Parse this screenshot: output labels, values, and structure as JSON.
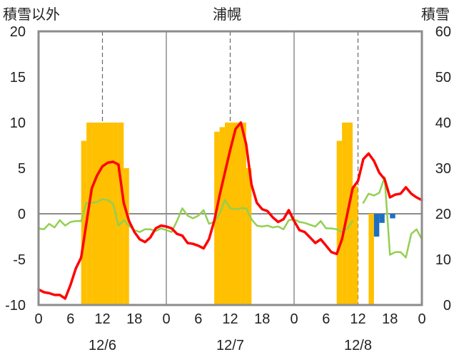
{
  "chart_data": {
    "type": "line",
    "title": "浦幌",
    "ylabel_left": "積雪以外",
    "ylabel_right": "積雪",
    "ylim_left": [
      -10,
      20
    ],
    "ylim_right": [
      0,
      60
    ],
    "yticks_left": [
      20,
      15,
      10,
      5,
      0,
      -5,
      -10
    ],
    "yticks_right": [
      60,
      50,
      40,
      30,
      20,
      10,
      0
    ],
    "x_range_hours": [
      0,
      72
    ],
    "x_tick_hours": [
      0,
      6,
      12,
      18,
      24,
      30,
      36,
      42,
      48,
      54,
      60,
      66,
      72
    ],
    "x_tick_labels": [
      "0",
      "6",
      "12",
      "18",
      "0",
      "6",
      "12",
      "18",
      "0",
      "6",
      "12",
      "18",
      "0"
    ],
    "day_labels": [
      "12/6",
      "12/7",
      "12/8"
    ],
    "day_label_hours": [
      12,
      36,
      60
    ],
    "series": [
      {
        "key": "snow_depth_bars",
        "axis": "right",
        "color": "#ffc000",
        "values": [
          [
            8,
            36
          ],
          [
            9,
            40
          ],
          [
            10,
            40
          ],
          [
            11,
            40
          ],
          [
            12,
            40
          ],
          [
            13,
            40
          ],
          [
            14,
            40
          ],
          [
            15,
            40
          ],
          [
            16,
            30
          ],
          [
            33,
            38
          ],
          [
            34,
            39
          ],
          [
            35,
            40
          ],
          [
            36,
            40
          ],
          [
            37,
            40
          ],
          [
            38,
            40
          ],
          [
            39,
            30
          ],
          [
            56,
            36
          ],
          [
            57,
            40
          ],
          [
            58,
            40
          ],
          [
            59,
            26
          ],
          [
            62,
            20
          ]
        ]
      },
      {
        "key": "blue_bars",
        "axis": "left",
        "color": "#1f6fbf",
        "values": [
          [
            63,
            -2.5
          ],
          [
            64,
            -1.0
          ],
          [
            66,
            -0.5
          ]
        ]
      },
      {
        "key": "red_line",
        "axis": "left",
        "color": "#ff0000",
        "values": [
          [
            0,
            -8.3
          ],
          [
            1,
            -8.6
          ],
          [
            2,
            -8.7
          ],
          [
            3,
            -8.9
          ],
          [
            4,
            -8.9
          ],
          [
            5,
            -9.3
          ],
          [
            6,
            -7.8
          ],
          [
            7,
            -6.0
          ],
          [
            8,
            -4.8
          ],
          [
            9,
            -1.0
          ],
          [
            10,
            2.8
          ],
          [
            11,
            4.2
          ],
          [
            12,
            5.2
          ],
          [
            13,
            5.6
          ],
          [
            14,
            5.7
          ],
          [
            15,
            5.4
          ],
          [
            16,
            1.2
          ],
          [
            17,
            -0.8
          ],
          [
            18,
            -2.0
          ],
          [
            19,
            -2.8
          ],
          [
            20,
            -3.1
          ],
          [
            21,
            -2.6
          ],
          [
            22,
            -1.6
          ],
          [
            23,
            -1.3
          ],
          [
            24,
            -1.4
          ],
          [
            25,
            -1.6
          ],
          [
            26,
            -2.2
          ],
          [
            27,
            -2.4
          ],
          [
            28,
            -3.2
          ],
          [
            29,
            -3.3
          ],
          [
            30,
            -3.5
          ],
          [
            31,
            -3.8
          ],
          [
            32,
            -2.8
          ],
          [
            33,
            -0.8
          ],
          [
            34,
            2.0
          ],
          [
            35,
            4.5
          ],
          [
            36,
            7.0
          ],
          [
            37,
            9.3
          ],
          [
            38,
            10.0
          ],
          [
            39,
            7.6
          ],
          [
            40,
            3.2
          ],
          [
            41,
            1.2
          ],
          [
            42,
            0.5
          ],
          [
            43,
            0.3
          ],
          [
            44,
            -0.4
          ],
          [
            45,
            -0.9
          ],
          [
            46,
            -0.6
          ],
          [
            47,
            0.4
          ],
          [
            48,
            -0.8
          ],
          [
            49,
            -1.8
          ],
          [
            50,
            -2.0
          ],
          [
            51,
            -2.6
          ],
          [
            52,
            -3.2
          ],
          [
            53,
            -2.8
          ],
          [
            54,
            -3.5
          ],
          [
            55,
            -4.2
          ],
          [
            56,
            -4.4
          ],
          [
            57,
            -2.8
          ],
          [
            58,
            0.0
          ],
          [
            59,
            2.8
          ],
          [
            60,
            3.6
          ],
          [
            61,
            6.0
          ],
          [
            62,
            6.6
          ],
          [
            63,
            5.8
          ],
          [
            64,
            4.5
          ],
          [
            65,
            3.8
          ],
          [
            66,
            1.8
          ],
          [
            67,
            2.1
          ],
          [
            68,
            2.2
          ],
          [
            69,
            2.9
          ],
          [
            70,
            2.2
          ],
          [
            71,
            1.8
          ],
          [
            72,
            1.5
          ]
        ]
      },
      {
        "key": "green_line",
        "axis": "left",
        "color": "#92d050",
        "values": [
          [
            0,
            -1.6
          ],
          [
            1,
            -1.7
          ],
          [
            2,
            -1.1
          ],
          [
            3,
            -1.5
          ],
          [
            4,
            -0.7
          ],
          [
            5,
            -1.3
          ],
          [
            6,
            -0.9
          ],
          [
            7,
            -0.8
          ],
          [
            8,
            -0.8
          ],
          [
            9,
            1.2
          ],
          [
            10,
            1.2
          ],
          [
            11,
            1.3
          ],
          [
            12,
            1.6
          ],
          [
            13,
            1.5
          ],
          [
            14,
            1.1
          ],
          [
            15,
            -1.3
          ],
          [
            16,
            -0.7
          ],
          [
            17,
            -1.3
          ],
          [
            18,
            -1.8
          ],
          [
            19,
            -2.0
          ],
          [
            20,
            -1.7
          ],
          [
            21,
            -1.7
          ],
          [
            22,
            -1.9
          ],
          [
            23,
            -1.6
          ],
          [
            24,
            -1.8
          ],
          [
            25,
            -2.0
          ],
          [
            26,
            -0.8
          ],
          [
            27,
            0.6
          ],
          [
            28,
            -0.2
          ],
          [
            29,
            -0.5
          ],
          [
            30,
            -0.2
          ],
          [
            31,
            0.4
          ],
          [
            32,
            -1.1
          ],
          [
            33,
            -0.9
          ],
          [
            34,
            0.0
          ],
          [
            35,
            1.5
          ],
          [
            36,
            0.6
          ],
          [
            37,
            0.5
          ],
          [
            38,
            0.6
          ],
          [
            39,
            0.6
          ],
          [
            40,
            -0.6
          ],
          [
            41,
            -1.3
          ],
          [
            42,
            -1.4
          ],
          [
            43,
            -1.3
          ],
          [
            44,
            -1.5
          ],
          [
            45,
            -1.4
          ],
          [
            46,
            -1.7
          ],
          [
            47,
            -0.7
          ],
          [
            48,
            -0.6
          ],
          [
            49,
            -0.9
          ],
          [
            50,
            -1.0
          ],
          [
            51,
            -1.2
          ],
          [
            52,
            -1.4
          ],
          [
            53,
            -0.8
          ],
          [
            54,
            -1.6
          ],
          [
            55,
            -1.6
          ],
          [
            56,
            -1.7
          ],
          [
            57,
            -2.0
          ],
          [
            58,
            -1.6
          ],
          [
            59,
            -0.8
          ],
          [
            60,
            null
          ],
          [
            61,
            1.2
          ],
          [
            62,
            2.2
          ],
          [
            63,
            2.0
          ],
          [
            64,
            2.3
          ],
          [
            65,
            4.0
          ],
          [
            66,
            -4.5
          ],
          [
            67,
            -4.2
          ],
          [
            68,
            -4.2
          ],
          [
            69,
            -4.8
          ],
          [
            70,
            -2.2
          ],
          [
            71,
            -1.7
          ],
          [
            72,
            -2.8
          ]
        ]
      },
      {
        "key": "purple_line",
        "axis": "left",
        "color": "#7030a0",
        "values": [
          [
            0,
            -10
          ],
          [
            72,
            -10
          ]
        ]
      }
    ],
    "grid": {
      "day_boundaries_solid": true,
      "hour_12_dashed": true,
      "zero_line": true
    }
  }
}
